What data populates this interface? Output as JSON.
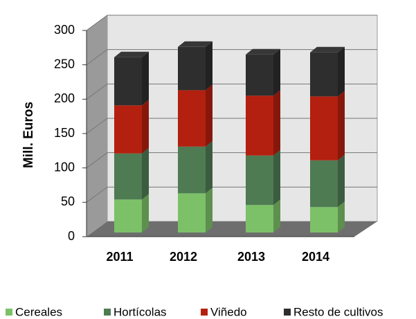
{
  "chart_data": {
    "type": "bar",
    "stacked": true,
    "y_label": "Mill. Euros",
    "categories": [
      "2011",
      "2012",
      "2013",
      "2014"
    ],
    "series": [
      {
        "name": "Cereales",
        "color": "#7cc168",
        "values": [
          48,
          57,
          40,
          37
        ]
      },
      {
        "name": "Hortícolas",
        "color": "#4f7b53",
        "values": [
          67,
          68,
          72,
          68
        ]
      },
      {
        "name": "Viñedo",
        "color": "#b3200f",
        "values": [
          70,
          82,
          87,
          93
        ]
      },
      {
        "name": "Resto de cultivos",
        "color": "#2e2e2e",
        "values": [
          70,
          63,
          60,
          64
        ]
      }
    ],
    "ylim": [
      0,
      300
    ],
    "yticks": [
      0,
      50,
      100,
      150,
      200,
      250,
      300
    ],
    "grid": true
  }
}
